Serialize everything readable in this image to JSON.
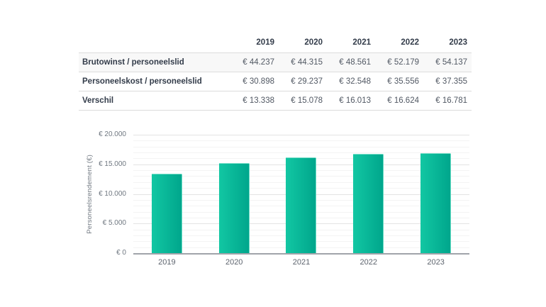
{
  "table": {
    "columns": [
      "2019",
      "2020",
      "2021",
      "2022",
      "2023"
    ],
    "rows": [
      {
        "label": "Brutowinst / personeelslid",
        "values": [
          "€ 44.237",
          "€ 44.315",
          "€ 48.561",
          "€ 52.179",
          "€ 54.137"
        ]
      },
      {
        "label": "Personeelskost / personeelslid",
        "values": [
          "€ 30.898",
          "€ 29.237",
          "€ 32.548",
          "€ 35.556",
          "€ 37.355"
        ]
      },
      {
        "label": "Verschil",
        "values": [
          "€ 13.338",
          "€ 15.078",
          "€ 16.013",
          "€ 16.624",
          "€ 16.781"
        ]
      }
    ]
  },
  "chart_data": {
    "type": "bar",
    "categories": [
      "2019",
      "2020",
      "2021",
      "2022",
      "2023"
    ],
    "values": [
      13338,
      15078,
      16013,
      16624,
      16781
    ],
    "title": "",
    "xlabel": "",
    "ylabel": "Personeelsrendement (€)",
    "ylim": [
      0,
      20000
    ],
    "yticks": [
      {
        "value": 20000,
        "label": "€ 20.000"
      },
      {
        "value": 15000,
        "label": "€ 15.000"
      },
      {
        "value": 10000,
        "label": "€ 10.000"
      },
      {
        "value": 5000,
        "label": "€ 5.000"
      },
      {
        "value": 0,
        "label": "€ 0"
      }
    ],
    "minor_step": 1000,
    "grid": true,
    "legend": "none",
    "bar_color_start": "#12c7a3",
    "bar_color_end": "#00a68c"
  },
  "colors": {
    "label_text": "#333c4a",
    "value_text": "#515863",
    "axis_text": "#6f7780",
    "row_stripe": "#f8f8f8",
    "table_border": "#dcdcdc",
    "grid_minor": "#f3f3f3",
    "grid_major": "#e3e3e3",
    "baseline": "#a0a4aa",
    "bar_teal": "#0bbd9b"
  }
}
